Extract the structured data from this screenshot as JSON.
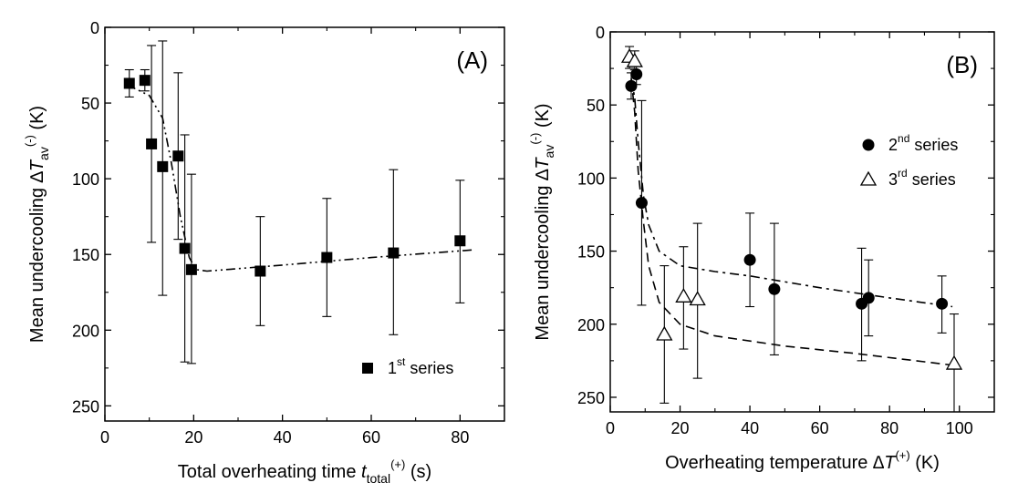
{
  "chart_data": [
    {
      "type": "scatter",
      "panel_label": "(A)",
      "x_tick_labels": [
        "0",
        "20",
        "40",
        "60",
        "80"
      ],
      "y_tick_labels": [
        "0",
        "50",
        "100",
        "150",
        "200",
        "250"
      ],
      "xlim": [
        0,
        90
      ],
      "ylim": [
        0,
        260
      ],
      "y_inverted": true,
      "grid": false,
      "legend_position": "bottom-right",
      "xlabel": {
        "pre": "Total overheating time ",
        "var": "t",
        "sub": "total",
        "sup": "(+)",
        "post": " (s)"
      },
      "ylabel": {
        "pre": "Mean undercooling ∆",
        "var": "T",
        "sub": "av",
        "sup": "(-)",
        "post": " (K)"
      },
      "series": [
        {
          "name_base": "1",
          "name_sup": "st",
          "name_rest": " series",
          "marker": "filled-square",
          "points": [
            {
              "x": 5.5,
              "y": 37,
              "err_low": 28,
              "err_high": 46
            },
            {
              "x": 9.0,
              "y": 35,
              "err_low": 28,
              "err_high": 42
            },
            {
              "x": 10.5,
              "y": 77,
              "err_low": 12,
              "err_high": 142
            },
            {
              "x": 13.0,
              "y": 92,
              "err_low": 9,
              "err_high": 177
            },
            {
              "x": 16.5,
              "y": 85,
              "err_low": 30,
              "err_high": 140
            },
            {
              "x": 18.0,
              "y": 146,
              "err_low": 71,
              "err_high": 221
            },
            {
              "x": 19.5,
              "y": 160,
              "err_low": 97,
              "err_high": 222
            },
            {
              "x": 35.0,
              "y": 161,
              "err_low": 125,
              "err_high": 197
            },
            {
              "x": 50.0,
              "y": 152,
              "err_low": 113,
              "err_high": 191
            },
            {
              "x": 65.0,
              "y": 149,
              "err_low": 94,
              "err_high": 203
            },
            {
              "x": 80.0,
              "y": 141,
              "err_low": 101,
              "err_high": 182
            }
          ]
        }
      ],
      "fit_lines": [
        {
          "style": "dash-dot-dot",
          "points": [
            [
              5,
              38
            ],
            [
              10,
              45
            ],
            [
              13,
              60
            ],
            [
              15,
              90
            ],
            [
              17,
              125
            ],
            [
              19,
              152
            ],
            [
              20.5,
              160
            ],
            [
              23,
              161
            ],
            [
              40,
              157
            ],
            [
              60,
              152
            ],
            [
              83,
              147
            ]
          ]
        }
      ]
    },
    {
      "type": "scatter",
      "panel_label": "(B)",
      "x_tick_labels": [
        "0",
        "20",
        "40",
        "60",
        "80",
        "100"
      ],
      "y_tick_labels": [
        "0",
        "50",
        "100",
        "150",
        "200",
        "250"
      ],
      "xlim": [
        0,
        110
      ],
      "ylim": [
        0,
        260
      ],
      "y_inverted": true,
      "grid": false,
      "legend_position": "top-right",
      "xlabel": {
        "pre": "Overheating temperature ",
        "var": "∆T",
        "sub": "",
        "sup": "(+)",
        "post": " (K)"
      },
      "ylabel": {
        "pre": "Mean undercooling ∆",
        "var": "T",
        "sub": "av",
        "sup": "(-)",
        "post": " (K)"
      },
      "series": [
        {
          "name_base": "2",
          "name_sup": "nd",
          "name_rest": " series",
          "marker": "filled-circle",
          "points": [
            {
              "x": 6.0,
              "y": 37,
              "err_low": 28,
              "err_high": 46
            },
            {
              "x": 7.5,
              "y": 29,
              "err_low": 22,
              "err_high": 36
            },
            {
              "x": 9.0,
              "y": 117,
              "err_low": 47,
              "err_high": 187
            },
            {
              "x": 40.0,
              "y": 156,
              "err_low": 124,
              "err_high": 188
            },
            {
              "x": 47.0,
              "y": 176,
              "err_low": 131,
              "err_high": 221
            },
            {
              "x": 72.0,
              "y": 186,
              "err_low": 148,
              "err_high": 225
            },
            {
              "x": 74.0,
              "y": 182,
              "err_low": 156,
              "err_high": 208
            },
            {
              "x": 95.0,
              "y": 186,
              "err_low": 167,
              "err_high": 206
            }
          ]
        },
        {
          "name_base": "3",
          "name_sup": "rd",
          "name_rest": " series",
          "marker": "open-triangle",
          "points": [
            {
              "x": 5.5,
              "y": 17,
              "err_low": 10,
              "err_high": 25
            },
            {
              "x": 7.0,
              "y": 20,
              "err_low": 13,
              "err_high": 26
            },
            {
              "x": 15.5,
              "y": 207,
              "err_low": 160,
              "err_high": 254
            },
            {
              "x": 21.0,
              "y": 181,
              "err_low": 147,
              "err_high": 217
            },
            {
              "x": 25.0,
              "y": 183,
              "err_low": 131,
              "err_high": 237
            },
            {
              "x": 98.5,
              "y": 227,
              "err_low": 193,
              "err_high": 260
            }
          ]
        }
      ],
      "fit_lines": [
        {
          "style": "dash-dot",
          "points": [
            [
              6,
              32
            ],
            [
              7,
              45
            ],
            [
              8,
              75
            ],
            [
              9.5,
              112
            ],
            [
              11,
              132
            ],
            [
              14,
              150
            ],
            [
              20,
              160
            ],
            [
              30,
              164
            ],
            [
              40,
              167
            ],
            [
              60,
              175
            ],
            [
              80,
              182
            ],
            [
              98,
              188
            ]
          ]
        },
        {
          "style": "dashed",
          "points": [
            [
              6,
              32
            ],
            [
              7,
              55
            ],
            [
              8,
              95
            ],
            [
              9.5,
              130
            ],
            [
              11,
              160
            ],
            [
              14,
              185
            ],
            [
              20,
              200
            ],
            [
              30,
              208
            ],
            [
              50,
              215
            ],
            [
              70,
              220
            ],
            [
              98,
              228
            ]
          ]
        }
      ]
    }
  ]
}
